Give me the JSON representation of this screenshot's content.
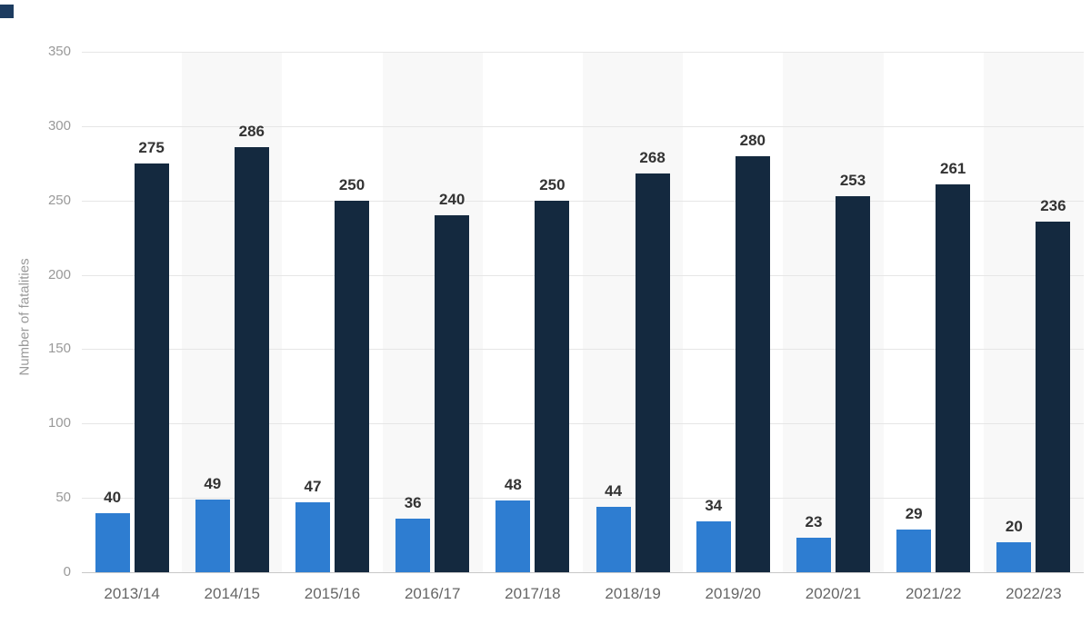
{
  "chart_data": {
    "type": "bar",
    "title": "",
    "ylabel": "Number of fatalities",
    "categories": [
      "2013/14",
      "2014/15",
      "2015/16",
      "2016/17",
      "2017/18",
      "2018/19",
      "2019/20",
      "2020/21",
      "2021/22",
      "2022/23"
    ],
    "series": [
      {
        "name": "series-light-blue",
        "color": "#2e7dd1",
        "values": [
          40,
          49,
          47,
          36,
          48,
          44,
          34,
          23,
          29,
          20
        ]
      },
      {
        "name": "series-dark-navy",
        "color": "#14293f",
        "values": [
          275,
          286,
          250,
          240,
          250,
          268,
          280,
          253,
          261,
          236
        ]
      }
    ],
    "ylim": [
      0,
      350
    ],
    "yticks": [
      0,
      50,
      100,
      150,
      200,
      250,
      300,
      350
    ],
    "grid": true,
    "legend_position": "none",
    "plot_band_color": "#f8f8f8",
    "axis_text_color": "#999999",
    "category_text_color": "#666666",
    "value_label_color": "#333333",
    "corner_mark_color": "#1d3c60"
  }
}
